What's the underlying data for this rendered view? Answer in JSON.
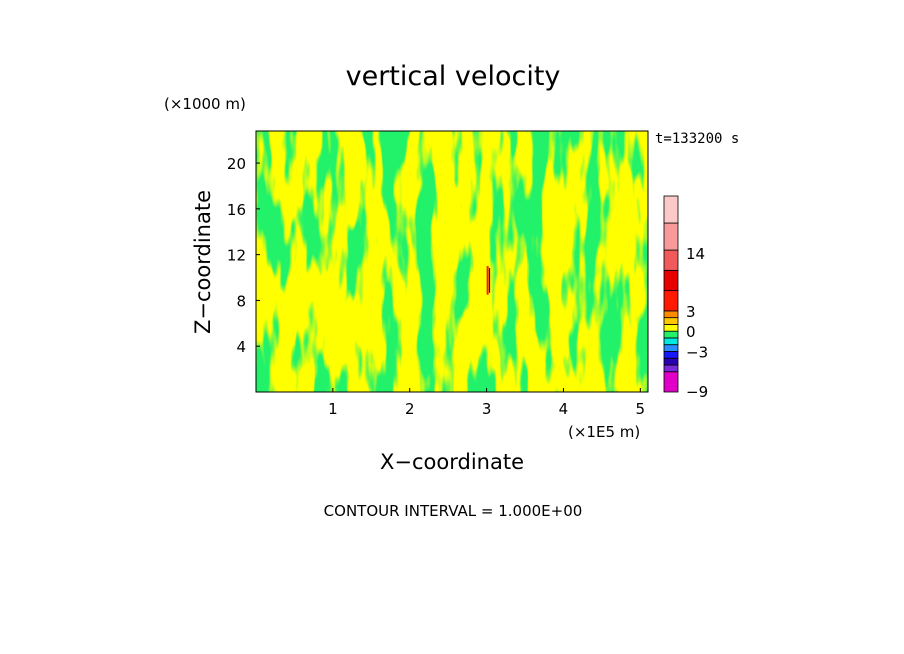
{
  "chart_data": {
    "type": "heatmap",
    "title": "vertical velocity",
    "time_label": "t=133200 s",
    "xlabel": "X−coordinate",
    "ylabel": "Z−coordinate",
    "x_unit": "(×1E5 m)",
    "y_unit": "(×1000 m)",
    "xlim": [
      0,
      5.1
    ],
    "ylim": [
      0,
      22.8
    ],
    "x_ticks": [
      1,
      2,
      3,
      4,
      5
    ],
    "y_ticks": [
      4,
      8,
      12,
      16,
      20
    ],
    "contour_interval_label": "CONTOUR INTERVAL = 1.000E+00",
    "colorbar": {
      "tick_labels": [
        {
          "label": "14",
          "value": 14
        },
        {
          "label": "3",
          "value": 3
        },
        {
          "label": "0",
          "value": 0
        },
        {
          "label": "−3",
          "value": -3
        },
        {
          "label": "−9",
          "value": -9
        }
      ],
      "bands": [
        {
          "range": "-9 to -6",
          "color": "#e000c8"
        },
        {
          "range": "-6 to -5",
          "color": "#7a2ad8"
        },
        {
          "range": "-5 to -4",
          "color": "#2a00b0"
        },
        {
          "range": "-4 to -3",
          "color": "#1818ff"
        },
        {
          "range": "-3 to -2",
          "color": "#2a8cff"
        },
        {
          "range": "-2 to -1",
          "color": "#00e8e0"
        },
        {
          "range": "-1 to 0",
          "color": "#22f26a"
        },
        {
          "range": "0 to 1",
          "color": "#ffff00"
        },
        {
          "range": "1 to 2",
          "color": "#ffc800"
        },
        {
          "range": "2 to 3",
          "color": "#ff8c00"
        },
        {
          "range": "3 to 4",
          "color": "#ff1a00"
        },
        {
          "range": "4 to 7",
          "color": "#e60000"
        },
        {
          "range": "7 to 10",
          "color": "#f05a5a"
        },
        {
          "range": "10 to 14",
          "color": "#f89a9a"
        },
        {
          "range": "14 to 18",
          "color": "#fcc8c8"
        }
      ]
    },
    "field_colors": {
      "negative": "#22f26a",
      "positive": "#ffff00",
      "updraft": "#ff1a00",
      "downdraft": "#2a00b0"
    },
    "updraft_location": {
      "x": 3.02,
      "z_range": [
        8.5,
        11
      ]
    }
  }
}
